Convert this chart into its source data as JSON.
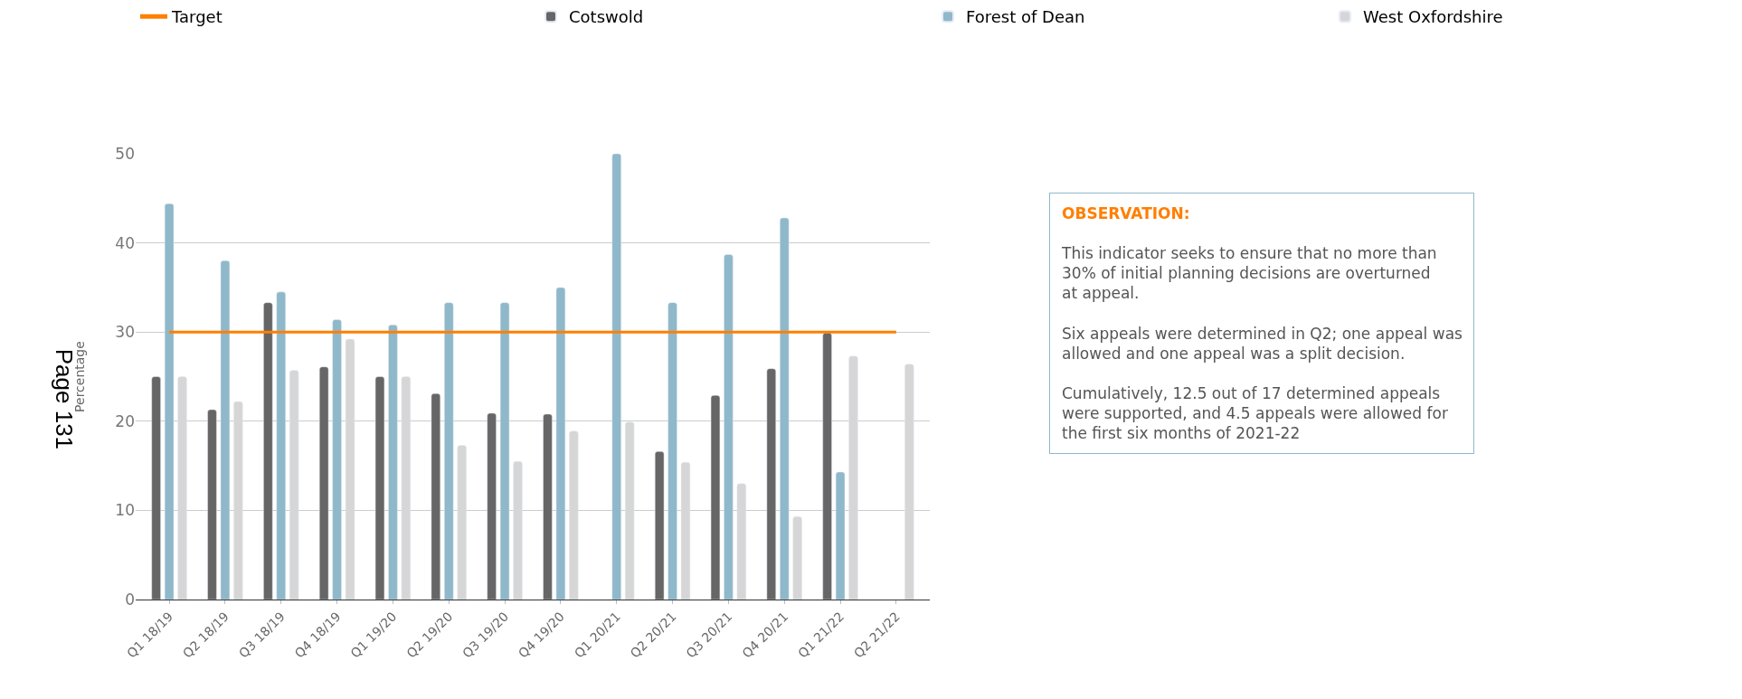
{
  "chart_data": {
    "type": "bar",
    "ylabel": "Percentage",
    "categories": [
      "Q1 18/19",
      "Q2 18/19",
      "Q3 18/19",
      "Q4 18/19",
      "Q1 19/20",
      "Q2 19/20",
      "Q3 19/20",
      "Q4 19/20",
      "Q1 20/21",
      "Q2 20/21",
      "Q3 20/21",
      "Q4 20/21",
      "Q1 21/22",
      "Q2 21/22"
    ],
    "series": [
      {
        "name": "Target",
        "type": "line",
        "color": "#ff7f00",
        "values": [
          30,
          30,
          30,
          30,
          30,
          30,
          30,
          30,
          30,
          30,
          30,
          30,
          30,
          30
        ]
      },
      {
        "name": "Cotswold",
        "color": "#666666",
        "values": [
          25.0,
          21.3,
          33.3,
          26.1,
          25.0,
          23.1,
          20.9,
          20.8,
          null,
          16.6,
          22.9,
          25.9,
          29.9,
          null
        ]
      },
      {
        "name": "Forest of Dean",
        "color": "#8fb8ca",
        "values": [
          44.4,
          38.0,
          34.5,
          31.4,
          30.8,
          33.3,
          33.3,
          35.0,
          50.0,
          33.3,
          38.7,
          42.8,
          14.3,
          null
        ]
      },
      {
        "name": "West Oxfordshire",
        "color": "#d6d6d6",
        "values": [
          25.0,
          22.2,
          25.7,
          29.2,
          25.0,
          17.3,
          15.5,
          18.9,
          19.9,
          15.4,
          13.0,
          9.3,
          27.3,
          26.4
        ]
      }
    ],
    "ylim": [
      0,
      50
    ],
    "yticks": [
      0,
      10,
      20,
      30,
      40,
      50
    ],
    "grid": "y",
    "legend": "top",
    "annotations": [
      "OBSERVATION:",
      "This indicator seeks to ensure that no more than 30% of initial planning decisions are overturned at appeal.",
      "Six appeals were determined in Q2; one appeal was allowed and one appeal was a split decision.",
      "Cumulatively, 12.5 out of 17 determined appeals were supported, and 4.5 appeals were allowed for the first six months of 2021-22",
      "Page 131"
    ]
  }
}
